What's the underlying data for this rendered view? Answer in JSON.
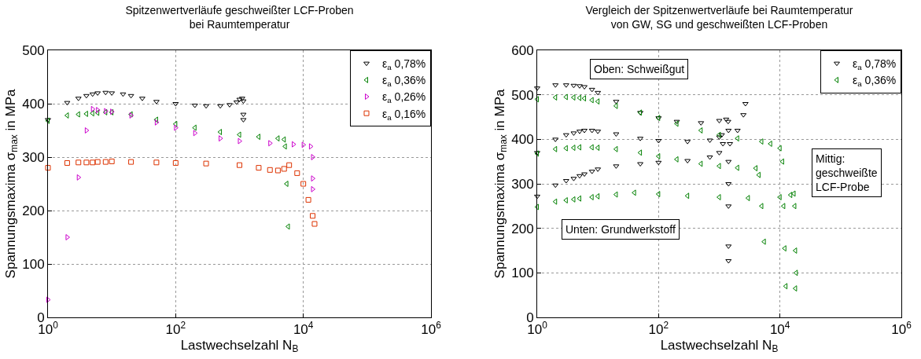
{
  "chart_data": [
    {
      "type": "scatter",
      "title": "Spitzenwertverläufe geschweißter LCF-Proben\nbei Raumtemperatur",
      "xlabel": "Lastwechselzahl N$_{B}$",
      "ylabel": "Spannungsmaxima σ$_{max}$ in MPa",
      "log": "x",
      "grid": true,
      "legend": "top right",
      "xlim": [
        1,
        1000000
      ],
      "xticks": [
        {
          "value": 1,
          "label": "10$^{0}$"
        },
        {
          "value": 100,
          "label": "10$^{2}$"
        },
        {
          "value": 10000,
          "label": "10$^{4}$"
        },
        {
          "value": 1000000,
          "label": "10$^{6}$"
        }
      ],
      "ylim": [
        0,
        500
      ],
      "yticks": [
        0,
        100,
        200,
        300,
        400,
        500
      ],
      "series": [
        {
          "name": "ε$_{a}$ 0,78%",
          "color": "#000000",
          "marker": "triangle-down",
          "x": [
            1,
            2,
            3,
            4,
            5,
            6,
            8,
            10,
            15,
            20,
            30,
            50,
            100,
            200,
            300,
            500,
            700,
            900,
            1000,
            1100,
            1150,
            1150,
            1150
          ],
          "values": [
            370,
            402,
            410,
            415,
            418,
            420,
            421,
            420,
            418,
            415,
            410,
            404,
            400,
            397,
            396,
            396,
            398,
            403,
            408,
            410,
            405,
            380,
            370
          ]
        },
        {
          "name": "ε$_{a}$ 0,36%",
          "color": "#008000",
          "marker": "triangle-left",
          "x": [
            1,
            2,
            3,
            4,
            5,
            6,
            8,
            10,
            20,
            50,
            100,
            200,
            500,
            1000,
            2000,
            4000,
            5000,
            5200,
            5500,
            5800
          ],
          "values": [
            368,
            378,
            380,
            381,
            382,
            383,
            384,
            384,
            380,
            370,
            362,
            355,
            347,
            342,
            338,
            335,
            333,
            320,
            250,
            170
          ]
        },
        {
          "name": "ε$_{a}$ 0,26%",
          "color": "#cc00cc",
          "marker": "triangle-right",
          "x": [
            1,
            2,
            3,
            4,
            5,
            6,
            8,
            10,
            20,
            50,
            100,
            200,
            500,
            1000,
            3000,
            7000,
            10000,
            13000,
            14000,
            14000,
            14000
          ],
          "values": [
            33,
            150,
            262,
            350,
            390,
            388,
            386,
            385,
            378,
            365,
            355,
            345,
            335,
            330,
            326,
            324,
            323,
            320,
            300,
            260,
            240
          ]
        },
        {
          "name": "ε$_{a}$ 0,16%",
          "color": "#dd3300",
          "marker": "square",
          "x": [
            1,
            2,
            3,
            4,
            5,
            6,
            8,
            10,
            20,
            50,
            100,
            300,
            1000,
            2000,
            3000,
            4000,
            5000,
            6000,
            8000,
            10000,
            12000,
            14000,
            15000
          ],
          "values": [
            280,
            289,
            290,
            290,
            290,
            291,
            291,
            292,
            291,
            290,
            289,
            288,
            285,
            280,
            276,
            275,
            278,
            285,
            270,
            250,
            220,
            190,
            175
          ]
        }
      ]
    },
    {
      "type": "scatter",
      "title": "Vergleich der Spitzenwertverläufe bei Raumtemperatur\nvon GW, SG und geschweißten LCF-Proben",
      "xlabel": "Lastwechselzahl N$_{B}$",
      "ylabel": "Spannungsmaxima σ$_{max}$ in MPa",
      "log": "x",
      "grid": true,
      "legend": "top right",
      "xlim": [
        1,
        1000000
      ],
      "xticks": [
        {
          "value": 1,
          "label": "10$^{0}$"
        },
        {
          "value": 100,
          "label": "10$^{2}$"
        },
        {
          "value": 10000,
          "label": "10$^{4}$"
        },
        {
          "value": 1000000,
          "label": "10$^{6}$"
        }
      ],
      "ylim": [
        0,
        600
      ],
      "yticks": [
        0,
        100,
        200,
        300,
        400,
        500,
        600
      ],
      "annotations": [
        "Oben: Schweißgut",
        "Mittig:\ngeschweißte\nLCF-Probe",
        "Unten: Grundwerkstoff"
      ],
      "series": [
        {
          "name": "ε$_{a}$ 0,78%",
          "color": "#000000",
          "marker": "triangle-down",
          "x": [
            1,
            2,
            3,
            4,
            5,
            6,
            8,
            10,
            20,
            50,
            100,
            200,
            500,
            1000,
            1300,
            1400,
            1420,
            1420,
            1420,
            1420,
            1420,
            1420
          ],
          "values": [
            515,
            522,
            522,
            521,
            520,
            518,
            512,
            505,
            485,
            460,
            448,
            440,
            437,
            442,
            445,
            440,
            420,
            350,
            300,
            250,
            160,
            127
          ]
        },
        {
          "color": "#000000",
          "marker": "triangle-down",
          "x": [
            1,
            2,
            3,
            4,
            5,
            6,
            8,
            10,
            20,
            50,
            100,
            300,
            700,
            1000,
            1100,
            1150
          ],
          "values": [
            370,
            400,
            410,
            414,
            418,
            420,
            420,
            418,
            412,
            402,
            397,
            395,
            398,
            405,
            410,
            390
          ]
        },
        {
          "color": "#000000",
          "marker": "triangle-down",
          "x": [
            1,
            2,
            3,
            4,
            5,
            6,
            8,
            10,
            20,
            50,
            100,
            300,
            700,
            1000,
            1500,
            2000,
            2500,
            2700
          ],
          "values": [
            272,
            297,
            307,
            312,
            318,
            322,
            328,
            333,
            340,
            345,
            348,
            352,
            360,
            370,
            390,
            420,
            455,
            480
          ]
        },
        {
          "name": "ε$_{a}$ 0,36%",
          "color": "#008000",
          "marker": "triangle-left",
          "x": [
            1,
            2,
            3,
            4,
            5,
            6,
            8,
            10,
            20,
            50,
            100,
            200,
            500,
            1000,
            2000,
            5000,
            7000,
            10000,
            11000,
            11500,
            12000,
            12500
          ],
          "values": [
            490,
            494,
            495,
            494,
            493,
            492,
            488,
            485,
            475,
            460,
            448,
            435,
            420,
            410,
            402,
            395,
            390,
            380,
            350,
            250,
            155,
            70
          ]
        },
        {
          "color": "#008000",
          "marker": "triangle-left",
          "x": [
            1,
            2,
            3,
            4,
            5,
            8,
            10,
            20,
            50,
            100,
            200,
            500,
            1000,
            2000,
            4000,
            4500,
            5000,
            5500
          ],
          "values": [
            368,
            378,
            380,
            381,
            382,
            382,
            381,
            378,
            370,
            362,
            355,
            345,
            340,
            336,
            335,
            320,
            250,
            170
          ]
        },
        {
          "color": "#008000",
          "marker": "triangle-left",
          "x": [
            1,
            2,
            3,
            4,
            5,
            8,
            10,
            20,
            40,
            100,
            300,
            1000,
            3000,
            10000,
            15000,
            17000,
            17500,
            18000,
            18500,
            18000
          ],
          "values": [
            248,
            260,
            263,
            265,
            267,
            270,
            272,
            276,
            280,
            277,
            273,
            270,
            268,
            270,
            275,
            278,
            250,
            150,
            100,
            65
          ]
        }
      ]
    }
  ]
}
